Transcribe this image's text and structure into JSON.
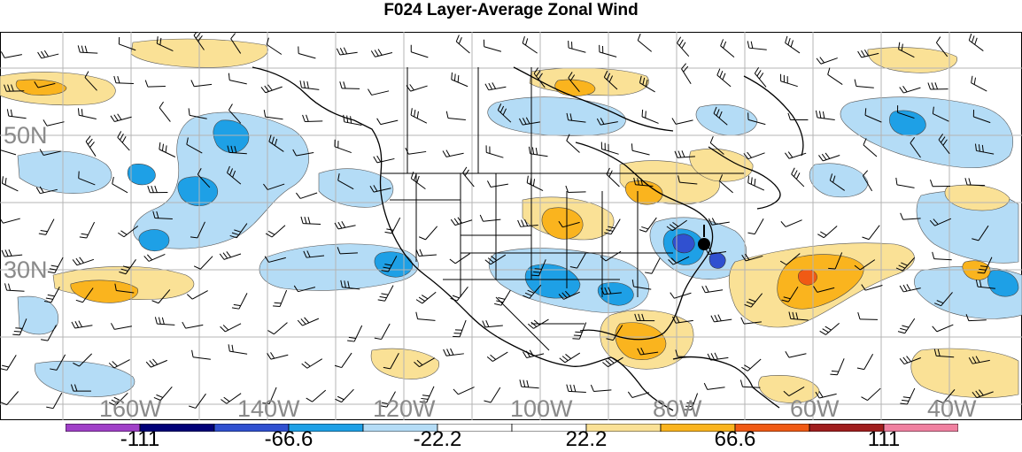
{
  "title": "F024 Layer-Average Zonal Wind",
  "lat_labels": [
    "50N",
    "30N"
  ],
  "lon_labels": [
    "160W",
    "140W",
    "120W",
    "100W",
    "80W",
    "60W",
    "40W"
  ],
  "colorbar": {
    "colors": [
      "#a040c8",
      "#000078",
      "#3050d0",
      "#1ea0e6",
      "#b4dcf6",
      "#ffffff",
      "#ffffff",
      "#fae196",
      "#fab41e",
      "#f05a14",
      "#a01e1e",
      "#f080a0"
    ],
    "labels": [
      "-111",
      "-66.6",
      "-22.2",
      "22.2",
      "66.6",
      "111"
    ]
  },
  "colors": {
    "light_blue": "#b4dcf6",
    "mid_blue": "#1ea0e6",
    "dark_blue": "#3050d0",
    "light_orange": "#fae196",
    "mid_orange": "#fab41e",
    "red_orange": "#f05a14",
    "grid": "#b4b4b4",
    "border": "#000000"
  },
  "icons": [
    "wind-barb-icon",
    "map-marker-icon"
  ]
}
